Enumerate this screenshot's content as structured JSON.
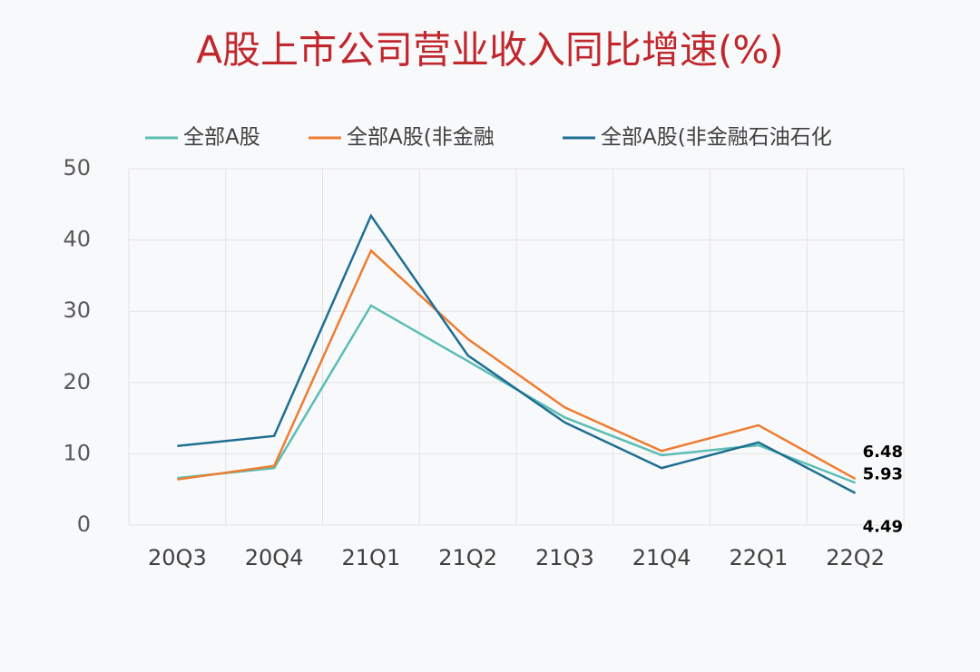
{
  "chart_data": {
    "type": "line",
    "title": "A股上市公司营业收入同比增速(%)",
    "categories": [
      "20Q3",
      "20Q4",
      "21Q1",
      "21Q2",
      "21Q3",
      "21Q4",
      "22Q1",
      "22Q2"
    ],
    "series": [
      {
        "name": "全部A股",
        "color": "#5bbdb4",
        "values": [
          6.6,
          8.0,
          30.8,
          23.0,
          15.1,
          9.8,
          11.2,
          5.93
        ]
      },
      {
        "name": "全部A股(非金融",
        "color": "#ed7d31",
        "values": [
          6.4,
          8.3,
          38.5,
          26.1,
          16.5,
          10.4,
          14.0,
          6.48
        ]
      },
      {
        "name": "全部A股(非金融石油石化",
        "color": "#1f6e91",
        "values": [
          11.1,
          12.5,
          43.4,
          23.8,
          14.4,
          8.0,
          11.6,
          4.49
        ]
      }
    ],
    "ylim": [
      0,
      50
    ],
    "yticks": [
      0,
      10,
      20,
      30,
      40,
      50
    ],
    "grid": true,
    "legend": "top"
  }
}
